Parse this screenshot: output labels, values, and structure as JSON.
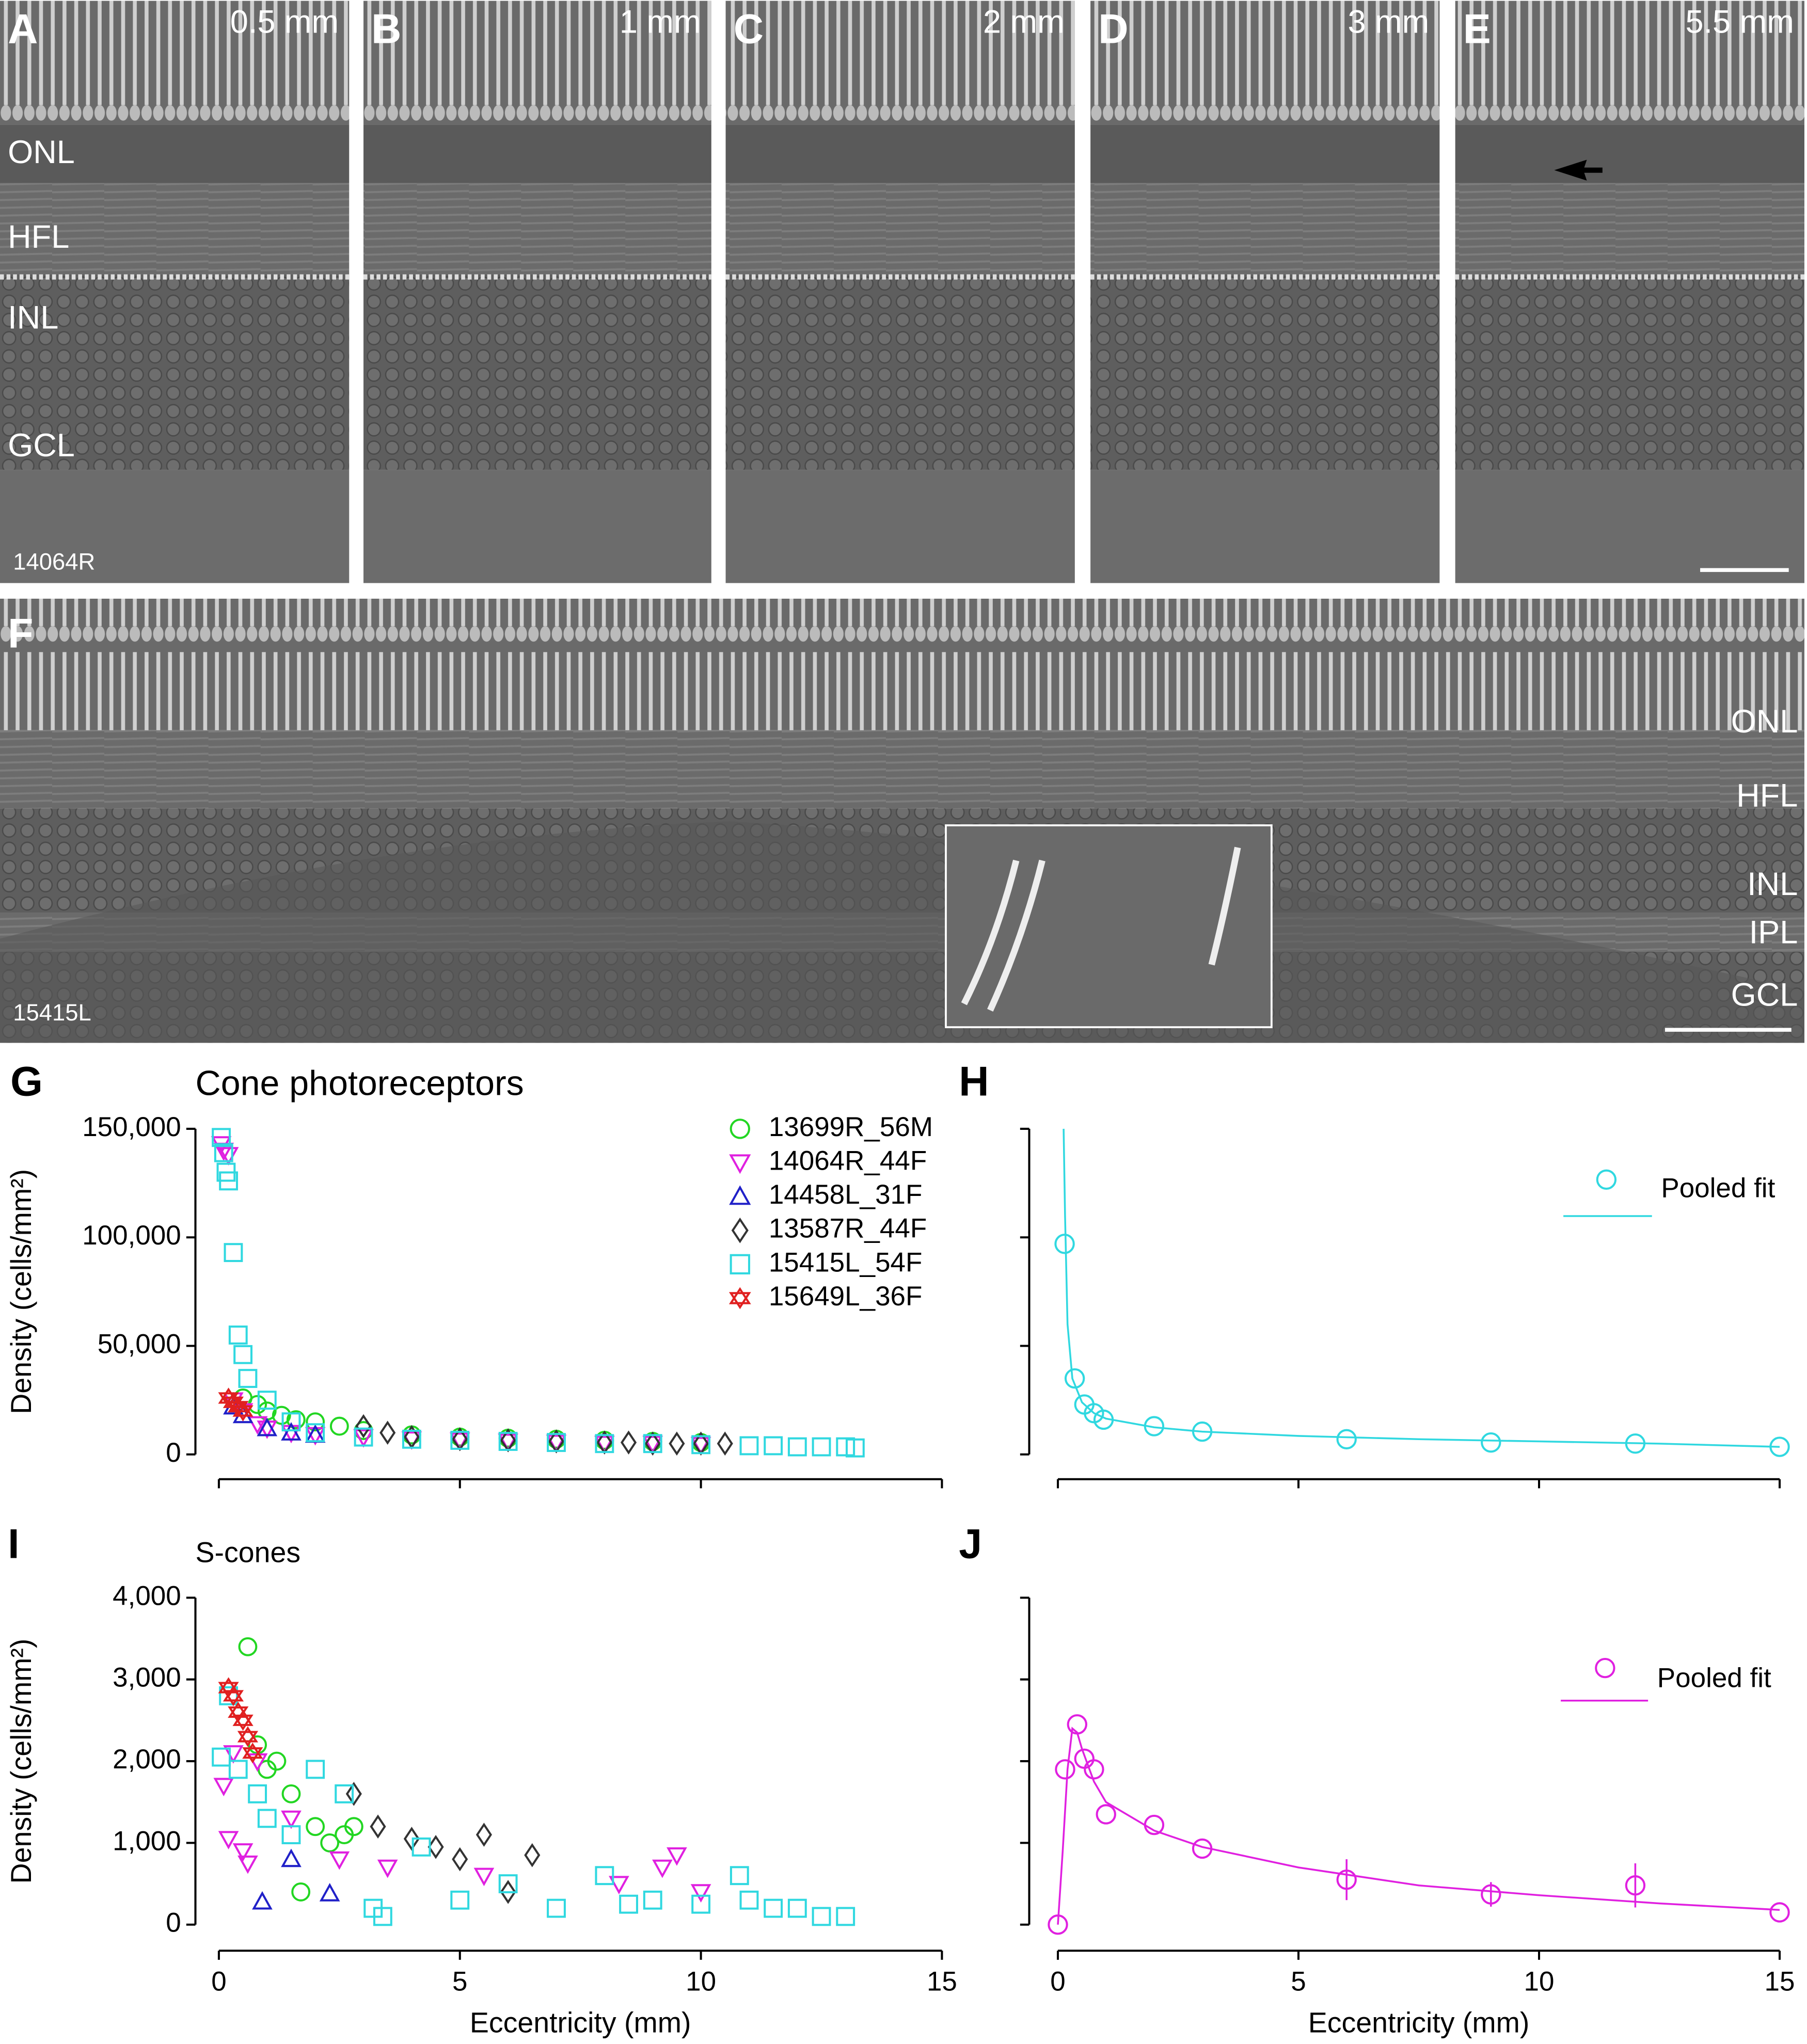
{
  "micrographs": {
    "panels": [
      {
        "letter": "A",
        "label": "0.5 mm"
      },
      {
        "letter": "B",
        "label": "1 mm"
      },
      {
        "letter": "C",
        "label": "2 mm"
      },
      {
        "letter": "D",
        "label": "3 mm"
      },
      {
        "letter": "E",
        "label": "5.5 mm"
      }
    ],
    "layers_A": [
      "ONL",
      "HFL",
      "INL",
      "GCL"
    ],
    "specimen_A": "14064R",
    "F": {
      "letter": "F",
      "layers": [
        "ONL",
        "HFL",
        "INL",
        "IPL",
        "GCL"
      ],
      "specimen": "15415L"
    }
  },
  "chart_data": [
    {
      "type": "scatter",
      "panel": "G",
      "title": "Cone photoreceptors",
      "ylabel": "Density (cells/mm²)",
      "xlim": [
        0,
        15
      ],
      "xticks": [
        0,
        5,
        10,
        15
      ],
      "xtick_labels": false,
      "ylim": [
        0,
        150000
      ],
      "yticks": [
        0,
        {
          "value": 50000,
          "label": "50,000"
        },
        {
          "value": 100000,
          "label": "100,000"
        },
        {
          "value": 150000,
          "label": "150,000"
        }
      ],
      "ytick_labels": true,
      "series": [
        {
          "name": "13699R_56M",
          "color": "#22d622",
          "marker": "circle",
          "x": [
            0.5,
            0.8,
            1,
            1.3,
            1.6,
            2,
            2.5,
            3,
            4,
            5,
            6,
            7,
            8,
            9,
            10
          ],
          "values": [
            26000,
            23000,
            20000,
            18000,
            16000,
            15000,
            13000,
            11000,
            9000,
            8000,
            7500,
            7000,
            6500,
            6000,
            5500
          ]
        },
        {
          "name": "14064R_44F",
          "color": "#e020e0",
          "marker": "triangle-down",
          "x": [
            0.05,
            0.1,
            0.2,
            0.3,
            0.5,
            0.8,
            1,
            1.5,
            2,
            3,
            4,
            5,
            6,
            7,
            8,
            9,
            10
          ],
          "values": [
            143000,
            140000,
            138000,
            25000,
            20000,
            14000,
            12000,
            10000,
            9000,
            8000,
            7000,
            6500,
            6000,
            5500,
            5000,
            5000,
            4500
          ]
        },
        {
          "name": "14458L_31F",
          "color": "#2020c8",
          "marker": "triangle-up",
          "x": [
            0.3,
            0.5,
            1,
            1.5,
            2
          ],
          "values": [
            22000,
            18000,
            12000,
            10000,
            9000
          ]
        },
        {
          "name": "13587R_44F",
          "color": "#333333",
          "marker": "diamond",
          "x": [
            3,
            3.5,
            4,
            5,
            6,
            7,
            8,
            8.5,
            9,
            9.5,
            10,
            10.5
          ],
          "values": [
            13000,
            10000,
            8000,
            7000,
            6500,
            6000,
            5500,
            5500,
            5000,
            5000,
            5000,
            5000
          ]
        },
        {
          "name": "15415L_54F",
          "color": "#30d8e0",
          "marker": "square",
          "x": [
            0.05,
            0.1,
            0.15,
            0.2,
            0.3,
            0.4,
            0.5,
            0.6,
            1,
            1.5,
            2,
            3,
            4,
            5,
            6,
            7,
            8,
            9,
            10,
            11,
            11.5,
            12,
            12.5,
            13,
            13.2
          ],
          "values": [
            146000,
            139000,
            130000,
            126000,
            93000,
            55000,
            46000,
            35000,
            25000,
            15000,
            10000,
            8000,
            7000,
            6500,
            6000,
            5500,
            5000,
            5000,
            4500,
            4000,
            4000,
            3500,
            3500,
            3500,
            3000
          ]
        },
        {
          "name": "15649L_36F",
          "color": "#e02020",
          "marker": "star",
          "x": [
            0.2,
            0.3,
            0.4,
            0.5
          ],
          "values": [
            26000,
            24000,
            22000,
            20000
          ]
        }
      ]
    },
    {
      "type": "scatter",
      "panel": "H",
      "xlim": [
        0,
        15
      ],
      "xticks": [
        0,
        5,
        10,
        15
      ],
      "xtick_labels": false,
      "ylim": [
        0,
        150000
      ],
      "yticks": [
        0,
        50000,
        100000,
        150000
      ],
      "ytick_labels": false,
      "series": [
        {
          "name": "Pooled fit",
          "color": "#30d8e0",
          "marker": "circle",
          "x": [
            0.14,
            0.35,
            0.55,
            0.75,
            0.95,
            2,
            3,
            6,
            9,
            12,
            15
          ],
          "values": [
            97000,
            35000,
            23000,
            19000,
            16000,
            13000,
            10500,
            7000,
            5500,
            5000,
            3500
          ]
        }
      ],
      "fit": {
        "color": "#30d8e0",
        "x": [
          0.12,
          0.15,
          0.2,
          0.3,
          0.5,
          0.75,
          1,
          2,
          3,
          5,
          7.5,
          10,
          12.5,
          15
        ],
        "values": [
          150000,
          110000,
          60000,
          35000,
          24000,
          19000,
          16500,
          12500,
          10500,
          8500,
          7000,
          6000,
          5000,
          3500
        ]
      }
    },
    {
      "type": "scatter",
      "panel": "I",
      "title": "S-cones",
      "ylabel": "Density (cells/mm²)",
      "xlabel": "Eccentricity (mm)",
      "xlim": [
        0,
        15
      ],
      "xticks": [
        0,
        5,
        10,
        15
      ],
      "xtick_labels": true,
      "ylim": [
        0,
        4000
      ],
      "yticks": [
        0,
        {
          "value": 1000,
          "label": "1,000"
        },
        {
          "value": 2000,
          "label": "2,000"
        },
        {
          "value": 3000,
          "label": "3,000"
        },
        {
          "value": 4000,
          "label": "4,000"
        }
      ],
      "ytick_labels": true,
      "series": [
        {
          "name": "13699R_56M",
          "color": "#22d622",
          "marker": "circle",
          "x": [
            0.6,
            0.8,
            1,
            1.2,
            1.5,
            1.7,
            2,
            2.3,
            2.6,
            2.8
          ],
          "values": [
            3400,
            2200,
            1900,
            2000,
            1600,
            400,
            1200,
            1000,
            1100,
            1200
          ]
        },
        {
          "name": "14064R_44F",
          "color": "#e020e0",
          "marker": "triangle-down",
          "x": [
            0.1,
            0.2,
            0.3,
            0.5,
            0.6,
            0.8,
            1.5,
            2.5,
            3.5,
            5.5,
            8.3,
            9.2,
            9.5,
            10
          ],
          "values": [
            1700,
            1050,
            2100,
            900,
            750,
            2000,
            1300,
            800,
            700,
            600,
            500,
            700,
            850,
            400
          ]
        },
        {
          "name": "14458L_31F",
          "color": "#2020c8",
          "marker": "triangle-up",
          "x": [
            0.9,
            1.5,
            2.3
          ],
          "values": [
            280,
            800,
            380
          ]
        },
        {
          "name": "13587R_44F",
          "color": "#333333",
          "marker": "diamond",
          "x": [
            2.8,
            3.3,
            4,
            4.5,
            5,
            5.5,
            6,
            6.5
          ],
          "values": [
            1600,
            1200,
            1050,
            950,
            800,
            1100,
            400,
            850
          ]
        },
        {
          "name": "15415L_54F",
          "color": "#30d8e0",
          "marker": "square",
          "x": [
            0.05,
            0.2,
            0.4,
            0.8,
            1,
            1.5,
            2,
            2.6,
            3.2,
            3.4,
            4.2,
            5,
            6,
            7,
            8,
            8.5,
            9,
            10,
            10.8,
            11,
            11.5,
            12,
            12.5,
            13
          ],
          "values": [
            2050,
            2800,
            1900,
            1600,
            1300,
            1100,
            1900,
            1600,
            200,
            100,
            950,
            300,
            500,
            200,
            600,
            250,
            300,
            250,
            600,
            300,
            200,
            200,
            100,
            100
          ]
        },
        {
          "name": "15649L_36F",
          "color": "#e02020",
          "marker": "star",
          "x": [
            0.2,
            0.3,
            0.4,
            0.5,
            0.6,
            0.7
          ],
          "values": [
            2900,
            2800,
            2600,
            2500,
            2300,
            2100
          ]
        }
      ]
    },
    {
      "type": "scatter",
      "panel": "J",
      "xlabel": "Eccentricity (mm)",
      "xlim": [
        0,
        15
      ],
      "xticks": [
        0,
        5,
        10,
        15
      ],
      "xtick_labels": true,
      "ylim": [
        0,
        4000
      ],
      "yticks": [
        0,
        1000,
        2000,
        3000,
        4000
      ],
      "ytick_labels": false,
      "series": [
        {
          "name": "Pooled fit",
          "color": "#e020e0",
          "marker": "circle",
          "x": [
            0,
            0.15,
            0.4,
            0.55,
            0.75,
            1,
            2,
            3,
            6,
            9,
            12,
            15
          ],
          "values": [
            0,
            1900,
            2450,
            2030,
            1900,
            1350,
            1220,
            930,
            550,
            370,
            480,
            150
          ],
          "errors": [
            null,
            null,
            null,
            null,
            null,
            null,
            null,
            null,
            250,
            150,
            270,
            null
          ]
        }
      ],
      "fit": {
        "color": "#e020e0",
        "x": [
          0,
          0.1,
          0.2,
          0.3,
          0.4,
          0.5,
          0.75,
          1,
          2,
          3,
          5,
          7.5,
          10,
          12.5,
          15
        ],
        "values": [
          0,
          900,
          1900,
          2400,
          2350,
          2150,
          1750,
          1500,
          1150,
          950,
          700,
          480,
          360,
          260,
          180
        ]
      }
    }
  ]
}
